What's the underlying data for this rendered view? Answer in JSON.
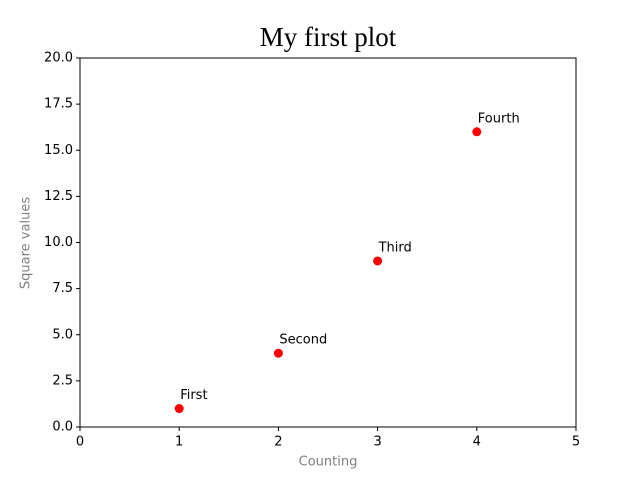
{
  "chart_data": {
    "type": "scatter",
    "title": "My first plot",
    "x_label": "Counting",
    "y_label": "Square values",
    "x": [
      1,
      2,
      3,
      4
    ],
    "values": [
      1,
      4,
      9,
      16
    ],
    "annotations": [
      "First",
      "Second",
      "Third",
      "Fourth"
    ],
    "color": "#ff0000",
    "xlim": [
      0,
      5
    ],
    "xticks": [
      0,
      1,
      2,
      3,
      4,
      5
    ],
    "ylim": [
      0,
      20
    ],
    "yticks": [
      {
        "value": 0,
        "label": "0.0"
      },
      {
        "value": 2.5,
        "label": "2.5"
      },
      {
        "value": 5,
        "label": "5.0"
      },
      {
        "value": 7.5,
        "label": "7.5"
      },
      {
        "value": 10,
        "label": "10.0"
      },
      {
        "value": 12.5,
        "label": "12.5"
      },
      {
        "value": 15,
        "label": "15.0"
      },
      {
        "value": 17.5,
        "label": "17.5"
      },
      {
        "value": 20,
        "label": "20.0"
      }
    ],
    "grid": false
  }
}
